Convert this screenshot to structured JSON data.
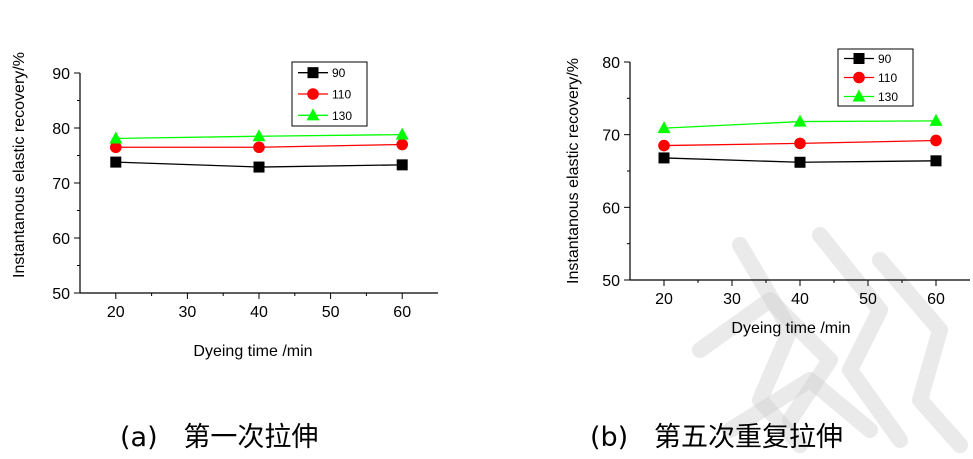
{
  "chart_data": [
    {
      "type": "line",
      "xlabel": "Dyeing time /min",
      "ylabel": "Instantanous elastic recovery/%",
      "xlim": [
        15,
        65
      ],
      "ylim": [
        50,
        90
      ],
      "xticks": [
        20,
        30,
        40,
        50,
        60
      ],
      "yticks": [
        50,
        60,
        70,
        80,
        90
      ],
      "x": [
        20,
        40,
        60
      ],
      "series": [
        {
          "name": "90",
          "values": [
            73.8,
            72.9,
            73.3
          ],
          "color": "#000000",
          "marker": "square"
        },
        {
          "name": "110",
          "values": [
            76.5,
            76.5,
            77.0
          ],
          "color": "#ff0000",
          "marker": "circle"
        },
        {
          "name": "130",
          "values": [
            78.1,
            78.5,
            78.8
          ],
          "color": "#00ff00",
          "marker": "triangle"
        }
      ],
      "legend": "top-right",
      "caption": "(a)   第一次拉伸"
    },
    {
      "type": "line",
      "xlabel": "Dyeing time /min",
      "ylabel": "Instantanous elastic recovery/%",
      "xlim": [
        15,
        65
      ],
      "ylim": [
        50,
        80
      ],
      "xticks": [
        20,
        30,
        40,
        50,
        60
      ],
      "yticks": [
        50,
        60,
        70,
        80
      ],
      "x": [
        20,
        40,
        60
      ],
      "series": [
        {
          "name": "90",
          "values": [
            66.8,
            66.2,
            66.4
          ],
          "color": "#000000",
          "marker": "square"
        },
        {
          "name": "110",
          "values": [
            68.5,
            68.8,
            69.2
          ],
          "color": "#ff0000",
          "marker": "circle"
        },
        {
          "name": "130",
          "values": [
            70.9,
            71.8,
            71.9
          ],
          "color": "#00ff00",
          "marker": "triangle"
        }
      ],
      "legend": "top-right",
      "caption": "(b)   第五次重复拉伸"
    }
  ]
}
